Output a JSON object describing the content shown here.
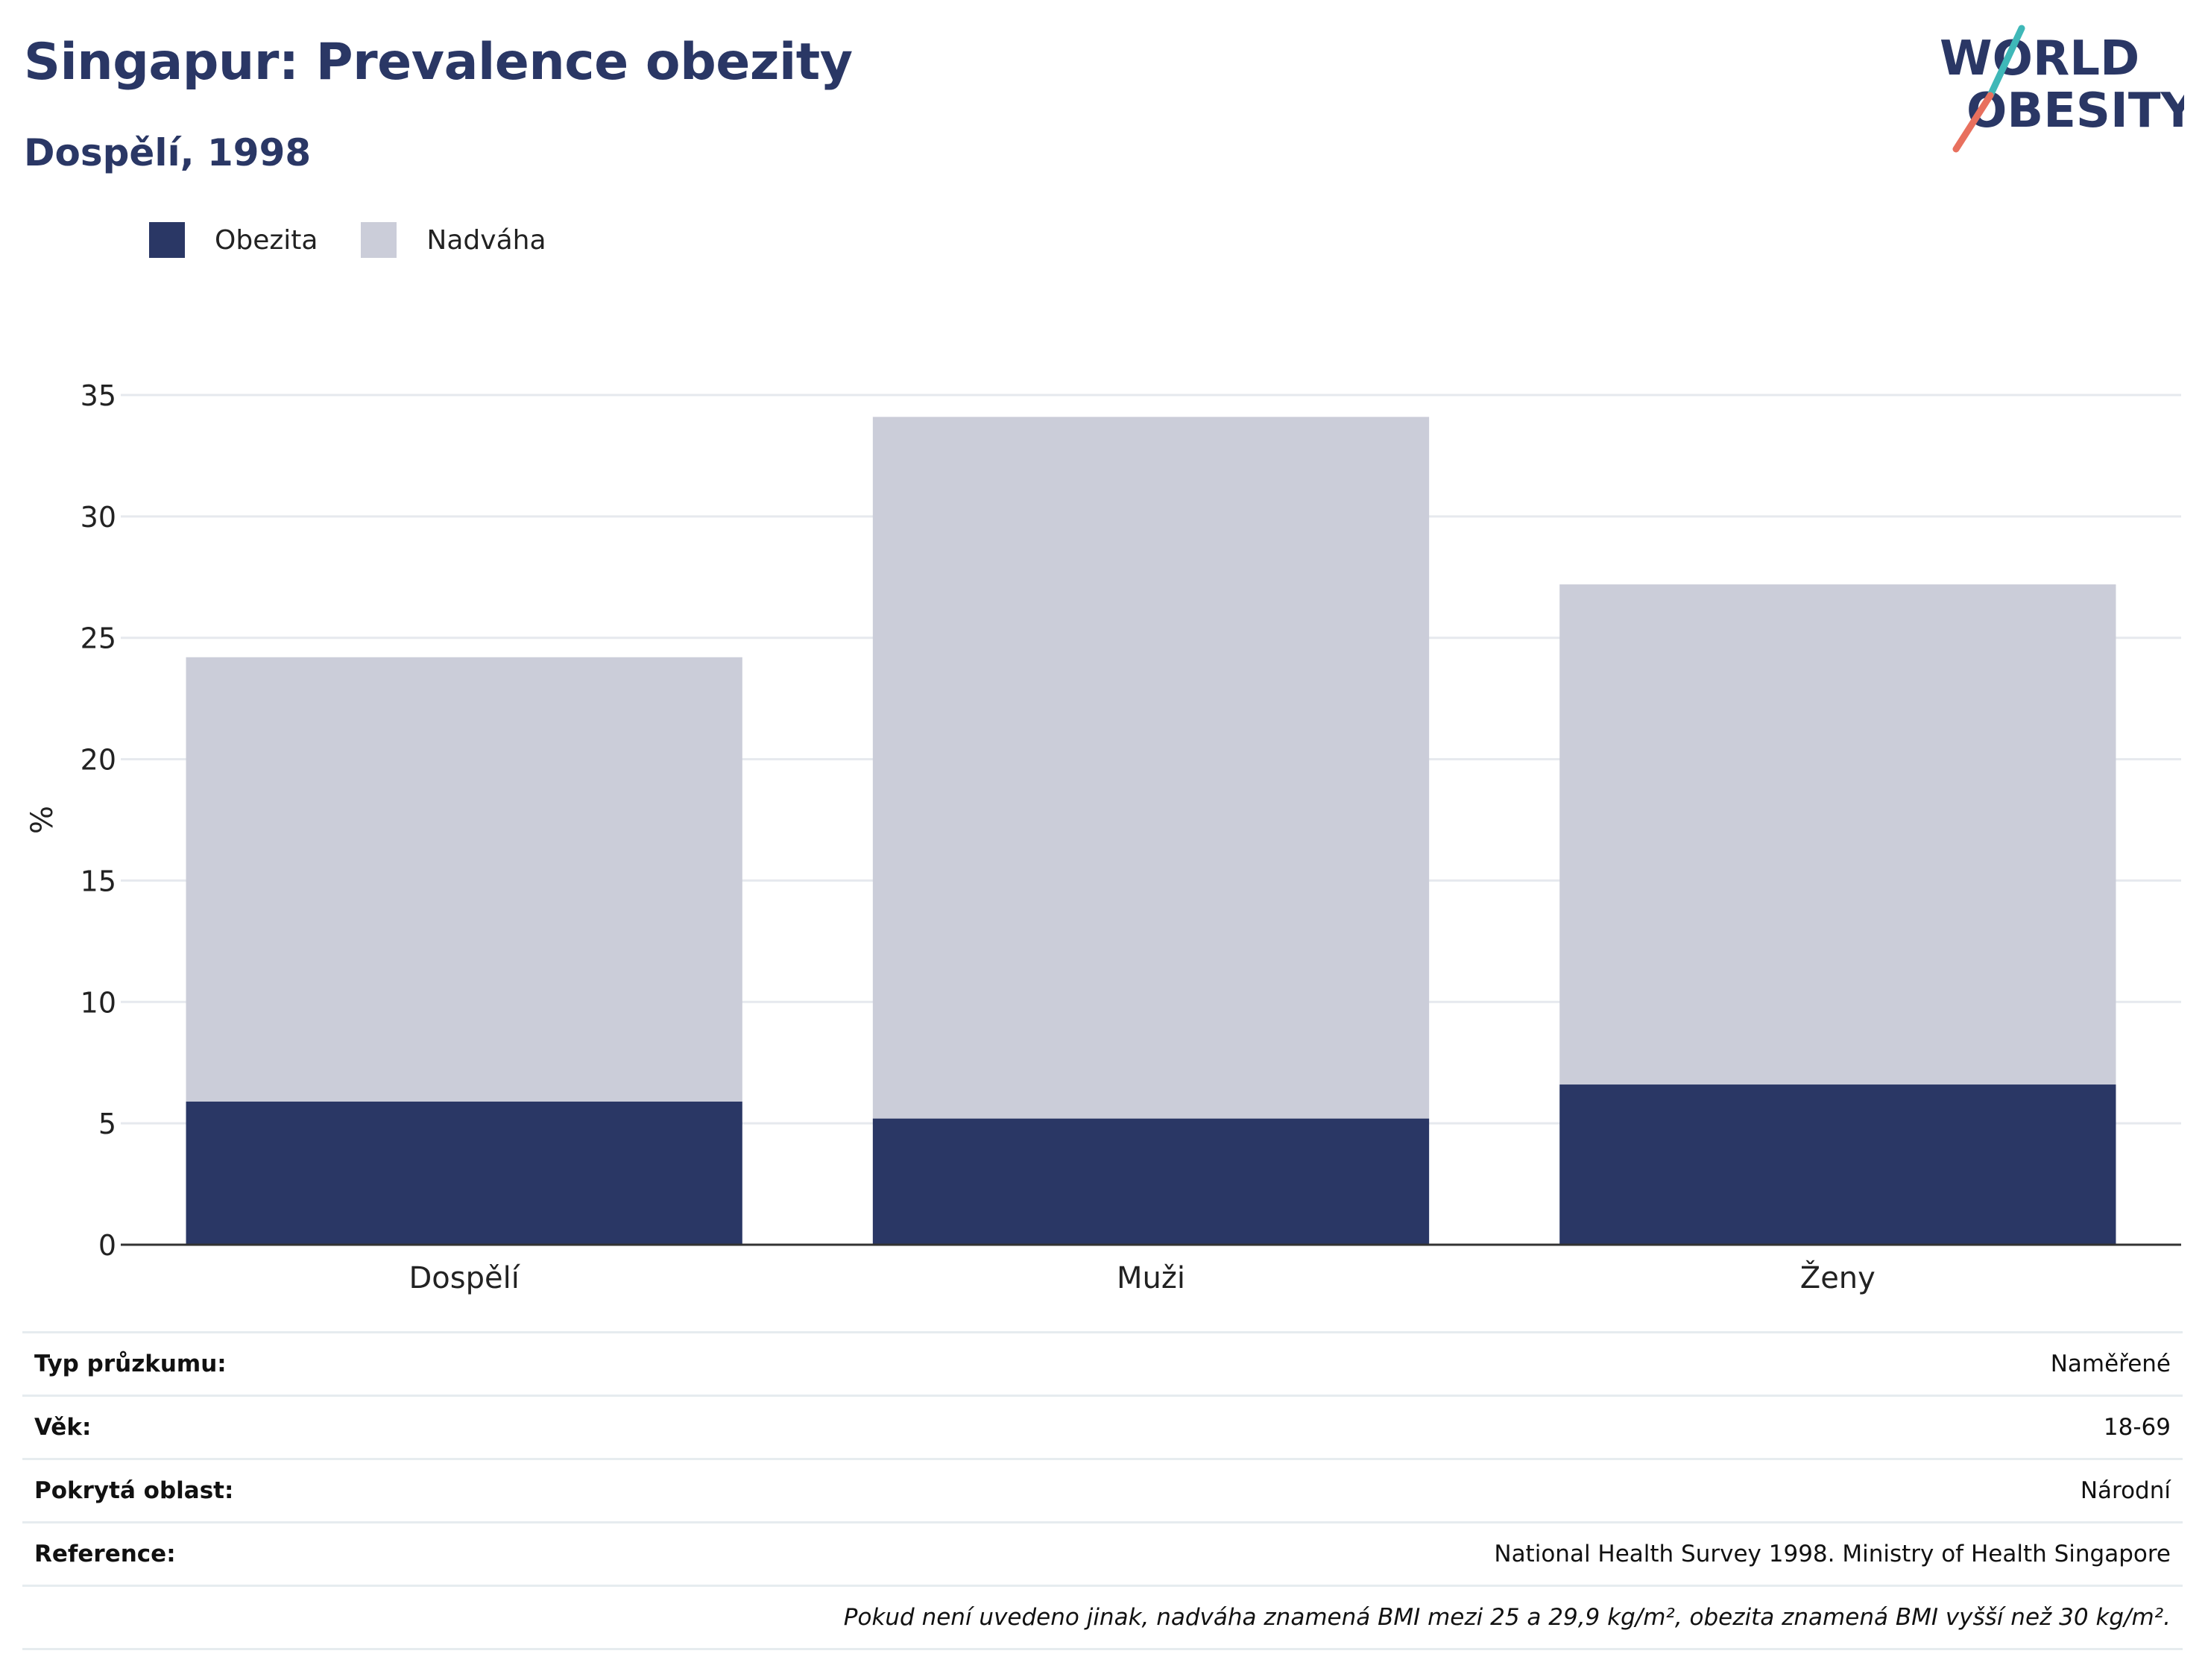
{
  "title": "Singapur: Prevalence obezity",
  "subtitle": "Dospělí, 1998",
  "logo": {
    "line1": "WORLD",
    "line2": "OBESITY"
  },
  "colors": {
    "obesity": "#2a3765",
    "overweight": "#cbcdd9",
    "grid": "#e6e9ee",
    "axis": "#333333",
    "logo_teal": "#3fb8b8",
    "logo_coral": "#e8705e"
  },
  "legend": [
    {
      "label": "Obezita",
      "color": "#2a3765"
    },
    {
      "label": "Nadváha",
      "color": "#cbcdd9"
    }
  ],
  "chart_data": {
    "type": "bar",
    "stacked": true,
    "categories": [
      "Dospělí",
      "Muži",
      "Ženy"
    ],
    "series": [
      {
        "name": "Obezita",
        "values": [
          5.9,
          5.2,
          6.6
        ]
      },
      {
        "name": "Nadváha",
        "values": [
          18.3,
          28.9,
          20.6
        ]
      }
    ],
    "ylabel": "%",
    "ylim": [
      0,
      35
    ],
    "yticks": [
      0,
      5,
      10,
      15,
      20,
      25,
      30,
      35
    ],
    "grid": true,
    "legend_position": "top-left"
  },
  "info": [
    {
      "key": "Typ průzkumu:",
      "value": "Naměřené"
    },
    {
      "key": "Věk:",
      "value": "18-69"
    },
    {
      "key": "Pokrytá oblast:",
      "value": "Národní"
    },
    {
      "key": "Reference:",
      "value": "National Health Survey 1998. Ministry of Health Singapore"
    }
  ],
  "note": "Pokud není uvedeno jinak, nadváha znamená BMI mezi 25 a 29,9 kg/m², obezita znamená BMI vyšší než 30 kg/m²."
}
